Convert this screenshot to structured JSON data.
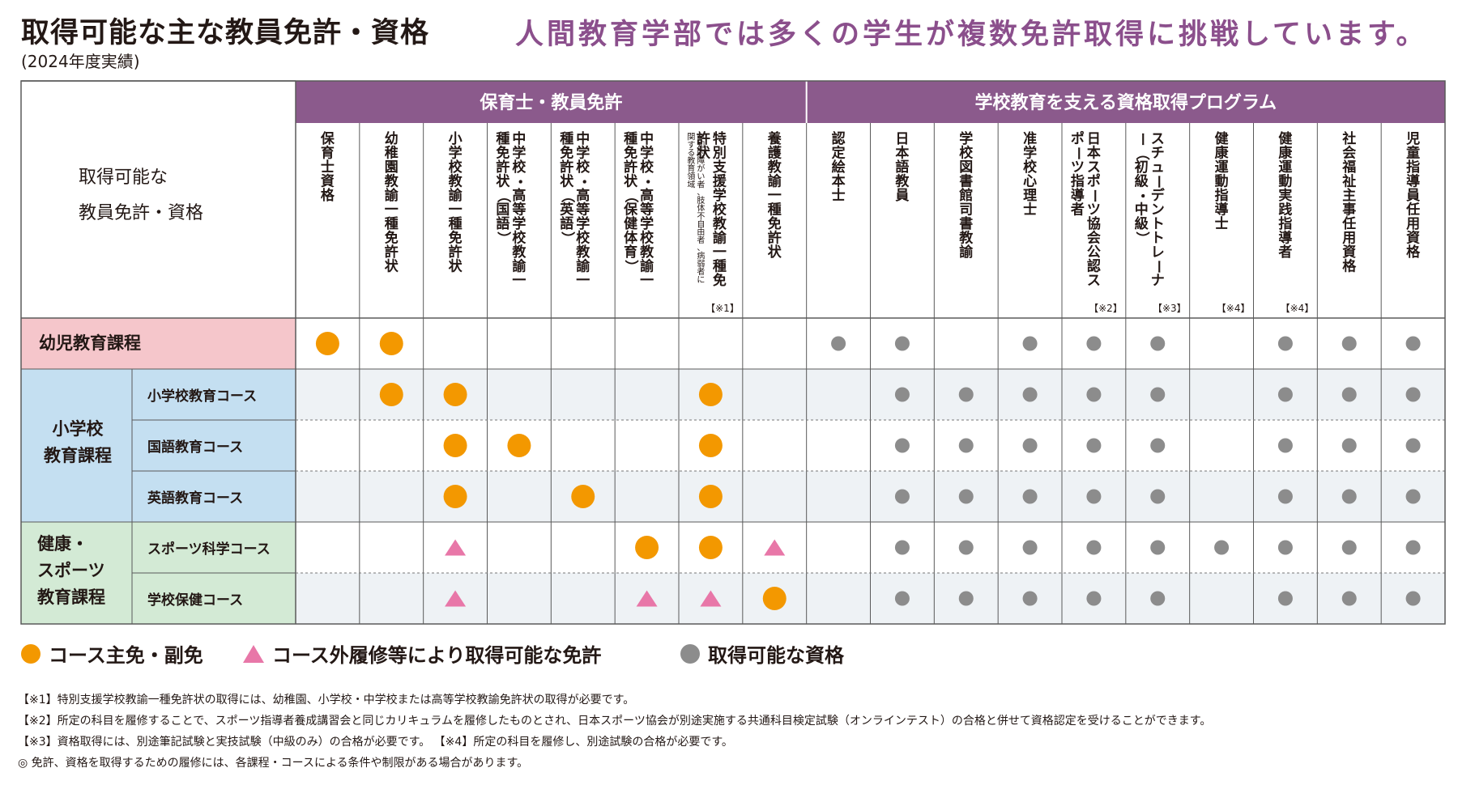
{
  "title": "取得可能な主な教員免許・資格",
  "title_year": "(2024年度実績)",
  "subtitle": "人間教育学部では多くの学生が複数免許取得に挑戦しています。",
  "table": {
    "corner_label_line1": "取得可能な",
    "corner_label_line2": "教員免許・資格",
    "groups": [
      {
        "label": "保育士・教員免許"
      },
      {
        "label": "学校教育を支える資格取得プログラム"
      }
    ],
    "columns": [
      {
        "text": "保育士資格"
      },
      {
        "text": "幼稚園教諭一種免許状"
      },
      {
        "text": "小学校教諭一種免許状"
      },
      {
        "text": "中学校・高等学校教諭一種免許状（国語）"
      },
      {
        "text": "中学校・高等学校教諭一種免許状（英語）"
      },
      {
        "text": "中学校・高等学校教諭一種免許状（保健体育）"
      },
      {
        "text": "特別支援学校教諭一種免許状",
        "subtext": "※知的障がい者、肢体不自由者、病弱者に関する教育領域",
        "note": "【※1】"
      },
      {
        "text": "養護教諭一種免許状"
      },
      {
        "text": "認定絵本士"
      },
      {
        "text": "日本語教員"
      },
      {
        "text": "学校図書館司書教諭"
      },
      {
        "text": "准学校心理士"
      },
      {
        "text": "日本スポーツ協会公認スポーツ指導者",
        "note": "【※2】"
      },
      {
        "text": "スチューデントトレーナー（初級・中級）",
        "note": "【※3】"
      },
      {
        "text": "健康運動指導士",
        "note": "【※4】"
      },
      {
        "text": "健康運動実践指導者",
        "note": "【※4】"
      },
      {
        "text": "社会福祉主事任用資格"
      },
      {
        "text": "児童指導員任用資格"
      }
    ],
    "row_groups": [
      {
        "label_lines": [
          "幼児教育課程"
        ],
        "color": "#f5c6cb"
      },
      {
        "label_lines": [
          "小学校",
          "教育課程"
        ],
        "color": "#c4dff1"
      },
      {
        "label_lines": [
          "健康・",
          "スポーツ",
          "教育課程"
        ],
        "color": "#d3ead5"
      }
    ],
    "rows": [
      {
        "course": "",
        "cells": [
          "O",
          "O",
          "",
          "",
          "",
          "",
          "",
          "",
          "G",
          "G",
          "",
          "G",
          "G",
          "G",
          "",
          "G",
          "G",
          "G"
        ]
      },
      {
        "course": "小学校教育コース",
        "cells": [
          "",
          "O",
          "O",
          "",
          "",
          "",
          "O",
          "",
          "",
          "G",
          "G",
          "G",
          "G",
          "G",
          "",
          "G",
          "G",
          "G"
        ]
      },
      {
        "course": "国語教育コース",
        "cells": [
          "",
          "",
          "O",
          "O",
          "",
          "",
          "O",
          "",
          "",
          "G",
          "G",
          "G",
          "G",
          "G",
          "",
          "G",
          "G",
          "G"
        ]
      },
      {
        "course": "英語教育コース",
        "cells": [
          "",
          "",
          "O",
          "",
          "O",
          "",
          "O",
          "",
          "",
          "G",
          "G",
          "G",
          "G",
          "G",
          "",
          "G",
          "G",
          "G"
        ]
      },
      {
        "course": "スポーツ科学コース",
        "cells": [
          "",
          "",
          "T",
          "",
          "",
          "O",
          "O",
          "T",
          "",
          "G",
          "G",
          "G",
          "G",
          "G",
          "G",
          "G",
          "G",
          "G"
        ]
      },
      {
        "course": "学校保健コース",
        "cells": [
          "",
          "",
          "T",
          "",
          "",
          "T",
          "T",
          "O",
          "",
          "G",
          "G",
          "G",
          "G",
          "G",
          "",
          "G",
          "G",
          "G"
        ]
      }
    ]
  },
  "legend": {
    "orange_label": "コース主免・副免",
    "pink_label": "コース外履修等により取得可能な免許",
    "gray_label": "取得可能な資格"
  },
  "notes": [
    "【※1】特別支援学校教諭一種免許状の取得には、幼稚園、小学校・中学校または高等学校教諭免許状の取得が必要です。",
    "【※2】所定の科目を履修することで、スポーツ指導者養成講習会と同じカリキュラムを履修したものとされ、日本スポーツ協会が別途実施する共通科目検定試験（オンラインテスト）の合格と併せて資格認定を受けることができます。",
    "【※3】資格取得には、別途筆記試験と実技試験（中級のみ）の合格が必要です。 【※4】所定の科目を履修し、別途試験の合格が必要です。",
    "◎ 免許、資格を取得するための履修には、各課程・コースによる条件や制限がある場合があります。"
  ],
  "colors": {
    "header_purple": "#8b5a8c",
    "subtitle_purple": "#8b4f8c",
    "orange_mark": "#f39800",
    "pink_mark": "#e877a8",
    "gray_mark": "#8c8c8c",
    "row_shade": "#eef2f5"
  }
}
